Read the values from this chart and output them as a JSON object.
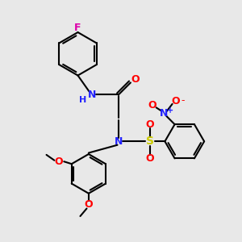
{
  "bg_color": "#e8e8e8",
  "bond_color": "#000000",
  "bond_lw": 1.5,
  "atom_colors": {
    "F": "#dd00aa",
    "N": "#2222ff",
    "H": "#2222ff",
    "O": "#ff0000",
    "S": "#cccc00",
    "plus": "#2222ff",
    "minus": "#ff0000"
  },
  "figsize": [
    3.0,
    3.0
  ],
  "dpi": 100
}
